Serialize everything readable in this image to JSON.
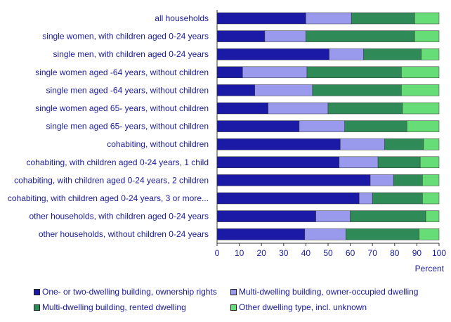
{
  "chart_data": {
    "type": "bar",
    "orientation": "horizontal",
    "stacked": true,
    "categories": [
      "all households",
      "single women, with children aged 0-24 years",
      "single men, with children aged 0-24 years",
      "single women aged -64 years, without children",
      "single men aged -64 years, without children",
      "single women aged 65- years, without children",
      "single men aged 65- years, without children",
      "cohabiting, without children",
      "cohabiting, with children aged 0-24 years, 1 child",
      "cohabiting, with children aged 0-24 years, 2 children",
      "cohabiting, with children aged 0-24 years, 3 or more...",
      "other households, with children aged 0-24 years",
      "other households, without children 0-24 years"
    ],
    "series": [
      {
        "name": "One- or two-dwelling building, ownership rights",
        "color": "#1a1aa6",
        "values": [
          40,
          21.5,
          50.5,
          11.5,
          17,
          23,
          37,
          55.5,
          55,
          69,
          64,
          44.5,
          39.5
        ]
      },
      {
        "name": "Multi-dwelling building, owner-occupied dwelling",
        "color": "#9999ee",
        "values": [
          20.5,
          18.5,
          15.5,
          29,
          26,
          27,
          20.5,
          20,
          17.5,
          10.5,
          6,
          15.5,
          18.5
        ]
      },
      {
        "name": "Multi-dwelling building, rented dwelling",
        "color": "#2e8b57",
        "values": [
          28.5,
          49,
          26,
          42.5,
          40,
          33.5,
          28,
          17.5,
          19,
          13,
          22.5,
          34,
          33
        ]
      },
      {
        "name": "Other dwelling type, incl. unknown",
        "color": "#66dd77",
        "values": [
          11,
          11,
          8,
          17,
          17,
          16.5,
          14.5,
          7,
          8.5,
          7.5,
          7.5,
          6,
          9
        ]
      }
    ],
    "xlim": [
      0,
      100
    ],
    "xticks": [
      "0",
      "10",
      "20",
      "30",
      "40",
      "50",
      "60",
      "70",
      "80",
      "90",
      "100"
    ],
    "xlabel": "Percent",
    "ylabel": "",
    "title": "",
    "grid": false,
    "legend_position": "bottom"
  }
}
